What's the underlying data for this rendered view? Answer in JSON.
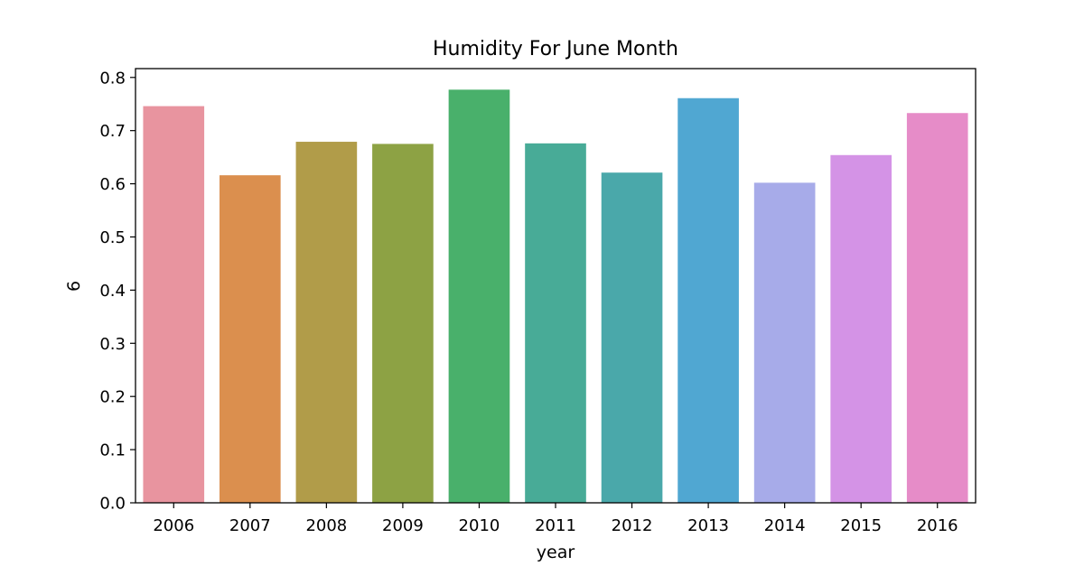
{
  "chart_data": {
    "type": "bar",
    "title": "Humidity For June Month",
    "xlabel": "year",
    "ylabel": "6",
    "categories": [
      "2006",
      "2007",
      "2008",
      "2009",
      "2010",
      "2011",
      "2012",
      "2013",
      "2014",
      "2015",
      "2016"
    ],
    "values": [
      0.746,
      0.616,
      0.679,
      0.675,
      0.777,
      0.676,
      0.621,
      0.761,
      0.602,
      0.654,
      0.733
    ],
    "colors": [
      "#e8949f",
      "#db8f4e",
      "#b19c49",
      "#8da244",
      "#49b06b",
      "#48ab97",
      "#4aa8aa",
      "#50a7d2",
      "#a7abe9",
      "#d493e6",
      "#e68cc8"
    ],
    "ylim": [
      0,
      0.8166
    ],
    "yticks": [
      "0.0",
      "0.1",
      "0.2",
      "0.3",
      "0.4",
      "0.5",
      "0.6",
      "0.7",
      "0.8"
    ],
    "grid": false,
    "legend": "none"
  }
}
